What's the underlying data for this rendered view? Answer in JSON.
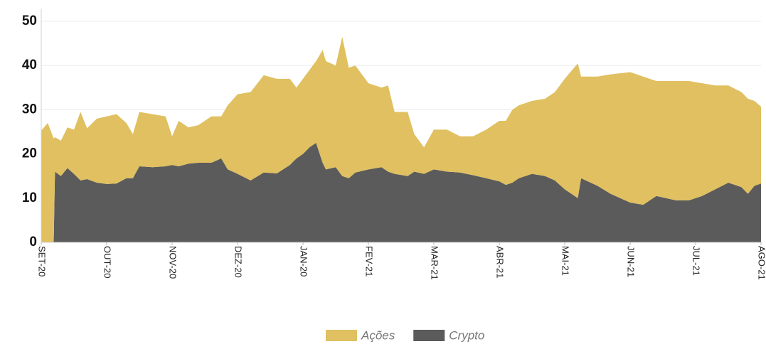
{
  "chart_data": {
    "type": "stacked_area",
    "x": [
      0,
      0.1,
      0.19,
      0.21,
      0.3,
      0.4,
      0.5,
      0.6,
      0.7,
      0.85,
      1.0,
      1.15,
      1.3,
      1.4,
      1.5,
      1.7,
      1.9,
      2.0,
      2.1,
      2.25,
      2.4,
      2.6,
      2.75,
      2.85,
      3.0,
      3.2,
      3.4,
      3.6,
      3.8,
      3.9,
      4.0,
      4.1,
      4.2,
      4.3,
      4.35,
      4.5,
      4.6,
      4.7,
      4.8,
      5.0,
      5.2,
      5.3,
      5.4,
      5.6,
      5.7,
      5.85,
      6.0,
      6.2,
      6.4,
      6.6,
      6.8,
      7.0,
      7.1,
      7.2,
      7.3,
      7.5,
      7.7,
      7.85,
      8.0,
      8.2,
      8.25,
      8.5,
      8.7,
      9.0,
      9.2,
      9.4,
      9.7,
      9.9,
      10.1,
      10.3,
      10.5,
      10.7,
      10.8,
      10.9,
      11.0
    ],
    "series": [
      {
        "name": "Crypto",
        "color": "#5b5b5b",
        "values": [
          0,
          0,
          0,
          16,
          15,
          16.8,
          15.5,
          14,
          14.3,
          13.5,
          13.2,
          13.3,
          14.5,
          14.5,
          17.2,
          17,
          17.2,
          17.5,
          17.2,
          17.8,
          18,
          18,
          19,
          16.5,
          15.5,
          14,
          15.8,
          15.6,
          17.5,
          19,
          20,
          21.5,
          22.5,
          18,
          16.5,
          17,
          15,
          14.5,
          15.8,
          16.5,
          17,
          16,
          15.5,
          15,
          16,
          15.5,
          16.5,
          16,
          15.8,
          15.2,
          14.5,
          13.8,
          13,
          13.5,
          14.5,
          15.5,
          15,
          14,
          12,
          10,
          14.5,
          12.8,
          11,
          9,
          8.5,
          10.5,
          9.5,
          9.5,
          10.5,
          12,
          13.5,
          12.5,
          11,
          12.8,
          13.3
        ]
      },
      {
        "name": "Ações",
        "color": "#e0c060",
        "values": [
          25.3,
          27,
          23.5,
          7.8,
          8,
          9.2,
          10,
          15.5,
          11.5,
          14.5,
          15.3,
          15.7,
          12.5,
          10,
          12.3,
          12,
          11.3,
          6.5,
          10.3,
          8.2,
          8.5,
          10.5,
          9.5,
          14.5,
          18,
          20,
          22,
          21.4,
          19.5,
          16,
          17,
          17.5,
          18.5,
          25.5,
          24.5,
          23,
          31.5,
          25,
          24.2,
          19.5,
          18,
          19.5,
          14,
          14.5,
          8.5,
          6,
          9,
          9.5,
          8.2,
          8.8,
          11,
          13.7,
          14.5,
          16.5,
          16.5,
          16.5,
          17.5,
          20,
          25,
          30.5,
          23,
          24.7,
          27,
          29.5,
          29,
          26,
          27,
          27,
          25.5,
          23.5,
          22,
          21.5,
          21.5,
          19.2,
          17.4
        ]
      }
    ],
    "xlim": [
      0,
      11
    ],
    "xticks": [
      {
        "value": 0,
        "label": "SET-20"
      },
      {
        "value": 1,
        "label": "OUT-20"
      },
      {
        "value": 2,
        "label": "NOV-20"
      },
      {
        "value": 3,
        "label": "DEZ-20"
      },
      {
        "value": 4,
        "label": "JAN-20"
      },
      {
        "value": 5,
        "label": "FEV-21"
      },
      {
        "value": 6,
        "label": "MAR-21"
      },
      {
        "value": 7,
        "label": "ABR-21"
      },
      {
        "value": 8,
        "label": "MAI-21"
      },
      {
        "value": 9,
        "label": "JUN-21"
      },
      {
        "value": 10,
        "label": "JUL-21"
      },
      {
        "value": 11,
        "label": "AGO-21"
      }
    ],
    "ylim": [
      0,
      50
    ],
    "yticks": [
      0,
      10,
      20,
      30,
      40,
      50
    ],
    "grid": true,
    "legend": "bottom"
  }
}
